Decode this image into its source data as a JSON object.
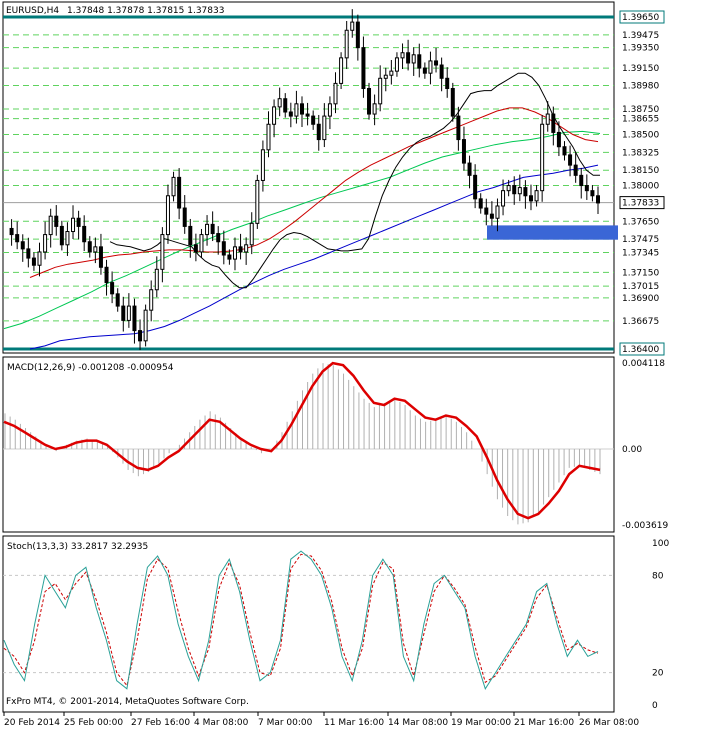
{
  "chart_data": [
    {
      "type": "candlestick",
      "symbol_label": "EURUSD,H4",
      "ohlc_header": "1.37848 1.37878 1.37815 1.37833",
      "ylim": [
        1.364,
        1.3965
      ],
      "price_ticks": [
        "1.39650",
        "1.39475",
        "1.39350",
        "1.39150",
        "1.38980",
        "1.38750",
        "1.38655",
        "1.38500",
        "1.38325",
        "1.38150",
        "1.38000",
        "1.37833",
        "1.37650",
        "1.37475",
        "1.37345",
        "1.37150",
        "1.37015",
        "1.36900",
        "1.36675",
        "1.36400"
      ],
      "highlighted_levels": [
        1.3965,
        1.364
      ],
      "current_price": 1.37833,
      "zone": {
        "from": 1.3761,
        "to": 1.3747
      },
      "price_path": [
        1.3758,
        1.3752,
        1.3745,
        1.3738,
        1.3729,
        1.3722,
        1.3735,
        1.3752,
        1.377,
        1.376,
        1.3742,
        1.3755,
        1.3768,
        1.376,
        1.3745,
        1.3735,
        1.374,
        1.372,
        1.3705,
        1.3694,
        1.3682,
        1.3668,
        1.3682,
        1.3658,
        1.3648,
        1.3678,
        1.3698,
        1.3718,
        1.3752,
        1.379,
        1.3808,
        1.3778,
        1.376,
        1.3742,
        1.3735,
        1.3752,
        1.3762,
        1.3753,
        1.3745,
        1.3732,
        1.3728,
        1.374,
        1.3735,
        1.3742,
        1.3763,
        1.3805,
        1.3835,
        1.386,
        1.3877,
        1.3885,
        1.3872,
        1.3868,
        1.388,
        1.387,
        1.3868,
        1.386,
        1.3845,
        1.3868,
        1.388,
        1.39,
        1.3925,
        1.3952,
        1.396,
        1.3935,
        1.3895,
        1.387,
        1.388,
        1.3905,
        1.3908,
        1.3912,
        1.3925,
        1.393,
        1.392,
        1.3928,
        1.3915,
        1.391,
        1.3922,
        1.3918,
        1.3905,
        1.3895,
        1.3868,
        1.3845,
        1.3822,
        1.381,
        1.3787,
        1.3778,
        1.3772,
        1.3768,
        1.378,
        1.3795,
        1.38,
        1.3792,
        1.3798,
        1.379,
        1.3785,
        1.3795,
        1.386,
        1.387,
        1.3852,
        1.3838,
        1.383,
        1.382,
        1.381,
        1.38,
        1.3795,
        1.379,
        1.3783
      ],
      "moving_averages": {
        "fast": [
          1.3745,
          1.3742,
          1.3741,
          1.374,
          1.3738,
          1.3736,
          1.3738,
          1.3742,
          1.3748,
          1.3746,
          1.3744,
          1.3742,
          1.374,
          1.3732,
          1.3726,
          1.3722,
          1.372,
          1.3712,
          1.3705,
          1.37,
          1.37,
          1.3708,
          1.3718,
          1.3728,
          1.3738,
          1.3747,
          1.3752,
          1.3754,
          1.3753,
          1.375,
          1.3746,
          1.3742,
          1.3738,
          1.3737,
          1.3736,
          1.3736,
          1.3737,
          1.3738,
          1.3748,
          1.377,
          1.379,
          1.3805,
          1.3818,
          1.3828,
          1.3836,
          1.3842,
          1.3846,
          1.3848,
          1.3852,
          1.3856,
          1.3862,
          1.387,
          1.388,
          1.389,
          1.3892,
          1.3893,
          1.3893,
          1.3898,
          1.3902,
          1.3906,
          1.391,
          1.391,
          1.3906,
          1.3898,
          1.3885,
          1.387,
          1.3858,
          1.3848,
          1.3838,
          1.3825,
          1.3815,
          1.381,
          1.381
        ],
        "slow": [
          1.371,
          1.3715,
          1.372,
          1.3723,
          1.3725,
          1.3727,
          1.373,
          1.3732,
          1.3733,
          1.3735,
          1.3736,
          1.3737,
          1.3737,
          1.3736,
          1.3735,
          1.3735,
          1.3736,
          1.3738,
          1.3742,
          1.3748,
          1.3756,
          1.3765,
          1.3775,
          1.3785,
          1.3795,
          1.3805,
          1.3813,
          1.382,
          1.3826,
          1.3832,
          1.3838,
          1.3843,
          1.3848,
          1.3853,
          1.3858,
          1.3863,
          1.3868,
          1.3873,
          1.3876,
          1.3876,
          1.3872,
          1.3866,
          1.3858,
          1.385,
          1.3845,
          1.3843
        ],
        "long": [
          1.366,
          1.3665,
          1.3672,
          1.368,
          1.3688,
          1.3696,
          1.3705,
          1.3712,
          1.372,
          1.3728,
          1.3736,
          1.3743,
          1.375,
          1.3757,
          1.3763,
          1.377,
          1.3776,
          1.3782,
          1.3788,
          1.3793,
          1.3798,
          1.3803,
          1.3808,
          1.3815,
          1.3822,
          1.3828,
          1.3832,
          1.3836,
          1.384,
          1.3843,
          1.3845,
          1.3848,
          1.3852,
          1.3853,
          1.3851
        ],
        "longest": [
          1.364,
          1.3643,
          1.3648,
          1.365,
          1.3652,
          1.3653,
          1.3654,
          1.3655,
          1.3658,
          1.3662,
          1.3668,
          1.3675,
          1.3682,
          1.369,
          1.3698,
          1.3705,
          1.3712,
          1.3718,
          1.3723,
          1.3728,
          1.3734,
          1.374,
          1.3746,
          1.3752,
          1.3758,
          1.3764,
          1.377,
          1.3776,
          1.3782,
          1.3788,
          1.3794,
          1.3798,
          1.3803,
          1.3808,
          1.381,
          1.3812,
          1.3815,
          1.3817,
          1.382
        ]
      },
      "line_colors": {
        "fast": "#000000",
        "slow": "#cc0000",
        "long": "#00c853",
        "longest": "#0000cc",
        "zone": "#3a66d6",
        "level": "#007a7a"
      }
    },
    {
      "type": "histogram+line",
      "label": "MACD(12,26,9) -0.001208 -0.000954",
      "ylim": [
        -0.00382,
        0.00425
      ],
      "ticks": [
        "0.004118",
        "0.00",
        "-0.003619"
      ],
      "signal": [
        0.0013,
        0.0011,
        0.0008,
        0.0005,
        0.0002,
        0.0,
        0.0001,
        0.0003,
        0.0004,
        0.0004,
        0.0002,
        -0.0002,
        -0.0006,
        -0.0009,
        -0.001,
        -0.0008,
        -0.0004,
        -0.0001,
        0.0004,
        0.0009,
        0.0014,
        0.0013,
        0.0009,
        0.0005,
        0.0002,
        0.0,
        -0.0001,
        0.0004,
        0.0012,
        0.0021,
        0.003,
        0.0037,
        0.0041,
        0.004,
        0.0035,
        0.0028,
        0.0022,
        0.0021,
        0.0024,
        0.0023,
        0.0019,
        0.0015,
        0.0014,
        0.0016,
        0.0015,
        0.0011,
        0.0006,
        -0.0004,
        -0.0015,
        -0.0024,
        -0.0031,
        -0.0033,
        -0.0031,
        -0.0026,
        -0.002,
        -0.0012,
        -0.0008,
        -0.0009,
        -0.001
      ],
      "histogram": [
        0.0017,
        0.0014,
        0.001,
        0.0006,
        0.0002,
        -0.0001,
        0.0002,
        0.0004,
        0.0005,
        0.0004,
        0.0001,
        -0.0004,
        -0.001,
        -0.0013,
        -0.0011,
        -0.0007,
        -0.0002,
        0.0002,
        0.0008,
        0.0014,
        0.0018,
        0.0015,
        0.001,
        0.0005,
        0.0001,
        -0.0002,
        0.0,
        0.0008,
        0.0018,
        0.0028,
        0.0036,
        0.0041,
        0.004,
        0.0036,
        0.003,
        0.0024,
        0.002,
        0.0022,
        0.0024,
        0.0021,
        0.0016,
        0.0013,
        0.0014,
        0.0016,
        0.0013,
        0.0008,
        0.0,
        -0.0012,
        -0.0024,
        -0.0032,
        -0.0036,
        -0.0035,
        -0.003,
        -0.0023,
        -0.0016,
        -0.0009,
        -0.0008,
        -0.001,
        -0.0012
      ],
      "colors": {
        "signal": "#dd0000",
        "histogram": "#b0b0b0"
      }
    },
    {
      "type": "line",
      "label": "Stoch(13,3,3) 33.2817 32.2935",
      "ylim": [
        0,
        100
      ],
      "ticks": [
        "100",
        "80",
        "20",
        "0"
      ],
      "main": [
        40,
        25,
        15,
        50,
        80,
        70,
        60,
        80,
        85,
        60,
        40,
        15,
        10,
        50,
        85,
        92,
        80,
        50,
        30,
        15,
        40,
        80,
        90,
        70,
        40,
        15,
        20,
        40,
        90,
        95,
        90,
        80,
        60,
        30,
        15,
        40,
        80,
        90,
        80,
        30,
        15,
        50,
        75,
        80,
        70,
        60,
        30,
        10,
        20,
        30,
        40,
        50,
        70,
        75,
        50,
        30,
        40,
        30,
        33
      ],
      "signal": [
        35,
        30,
        20,
        40,
        70,
        75,
        65,
        75,
        82,
        65,
        45,
        20,
        12,
        40,
        78,
        90,
        84,
        58,
        35,
        18,
        35,
        72,
        88,
        74,
        45,
        20,
        18,
        35,
        84,
        93,
        92,
        83,
        64,
        35,
        18,
        35,
        74,
        88,
        84,
        38,
        18,
        44,
        70,
        80,
        72,
        62,
        36,
        14,
        18,
        28,
        38,
        48,
        66,
        74,
        54,
        34,
        38,
        34,
        32
      ],
      "colors": {
        "main": "#2aa198",
        "signal": "#cc0000"
      }
    }
  ],
  "time_axis": [
    "20 Feb 2014",
    "25 Feb 00:00",
    "27 Feb 16:00",
    "4 Mar 08:00",
    "7 Mar 00:00",
    "11 Mar 16:00",
    "14 Mar 08:00",
    "19 Mar 00:00",
    "21 Mar 16:00",
    "26 Mar 08:00"
  ],
  "copyright": "FxPro MT4, © 2001-2014, MetaQuotes Software Corp."
}
